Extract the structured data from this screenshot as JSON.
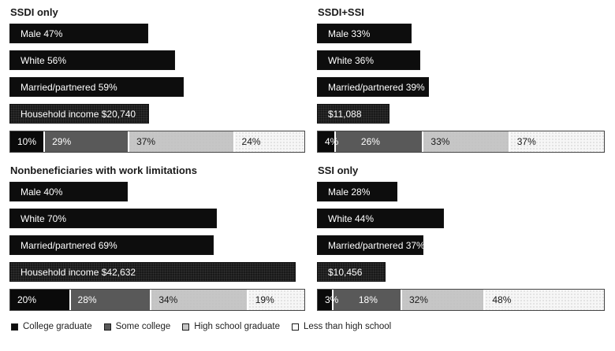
{
  "chart_data": {
    "type": "bar",
    "layout": "2x2-panels-with-stacked-education-bar",
    "income_scale_max": 44000,
    "panels": [
      {
        "title": "SSDI only",
        "demographic_bars": [
          {
            "label": "Male 47%",
            "value": 47,
            "unit": "percent"
          },
          {
            "label": "White 56%",
            "value": 56,
            "unit": "percent"
          },
          {
            "label": "Married/partnered 59%",
            "value": 59,
            "unit": "percent"
          },
          {
            "label": "Household income $20,740",
            "value": 20740,
            "unit": "dollars"
          }
        ],
        "education_stack": {
          "categories": [
            "College graduate",
            "Some college",
            "High school graduate",
            "Less than high school"
          ],
          "values": [
            10,
            29,
            37,
            24
          ],
          "labels": [
            "10%",
            "29%",
            "37%",
            "24%"
          ]
        }
      },
      {
        "title": "SSDI+SSI",
        "demographic_bars": [
          {
            "label": "Male 33%",
            "value": 33,
            "unit": "percent"
          },
          {
            "label": "White 36%",
            "value": 36,
            "unit": "percent"
          },
          {
            "label": "Married/partnered 39%",
            "value": 39,
            "unit": "percent"
          },
          {
            "label": "$11,088",
            "value": 11088,
            "unit": "dollars"
          }
        ],
        "education_stack": {
          "categories": [
            "College graduate",
            "Some college",
            "High school graduate",
            "Less than high school"
          ],
          "values": [
            4,
            26,
            33,
            37
          ],
          "labels": [
            "4%",
            "26%",
            "33%",
            "37%"
          ]
        }
      },
      {
        "title": "Nonbeneficiaries with work limitations",
        "demographic_bars": [
          {
            "label": "Male 40%",
            "value": 40,
            "unit": "percent"
          },
          {
            "label": "White 70%",
            "value": 70,
            "unit": "percent"
          },
          {
            "label": "Married/partnered 69%",
            "value": 69,
            "unit": "percent"
          },
          {
            "label": "Household income $42,632",
            "value": 42632,
            "unit": "dollars"
          }
        ],
        "education_stack": {
          "categories": [
            "College graduate",
            "Some college",
            "High school graduate",
            "Less than high school"
          ],
          "values": [
            20,
            28,
            34,
            19
          ],
          "labels": [
            "20%",
            "28%",
            "34%",
            "19%"
          ]
        }
      },
      {
        "title": "SSI only",
        "demographic_bars": [
          {
            "label": "Male 28%",
            "value": 28,
            "unit": "percent"
          },
          {
            "label": "White 44%",
            "value": 44,
            "unit": "percent"
          },
          {
            "label": "Married/partnered 37%",
            "value": 37,
            "unit": "percent"
          },
          {
            "label": "$10,456",
            "value": 10456,
            "unit": "dollars"
          }
        ],
        "education_stack": {
          "categories": [
            "College graduate",
            "Some college",
            "High school graduate",
            "Less than high school"
          ],
          "values": [
            3,
            18,
            32,
            48
          ],
          "labels": [
            "3%",
            "18%",
            "32%",
            "48%"
          ]
        }
      }
    ],
    "legend": {
      "items": [
        {
          "label": "College graduate",
          "color": "#0d0d0d"
        },
        {
          "label": "Some college",
          "color": "#595959"
        },
        {
          "label": "High school graduate",
          "color": "#c6c6c6"
        },
        {
          "label": "Less than high school",
          "color": "#fcfcfc"
        }
      ],
      "position": "bottom-left"
    },
    "colors": {
      "demographic_bar": "#0d0d0d",
      "income_bar": "#191919",
      "stack_segments": [
        "#0a0a0a",
        "#595959",
        "#c6c6c6",
        "#f6f6f6"
      ],
      "stack_text": [
        "#ffffff",
        "#ffffff",
        "#1a1a1a",
        "#1a1a1a"
      ]
    }
  }
}
